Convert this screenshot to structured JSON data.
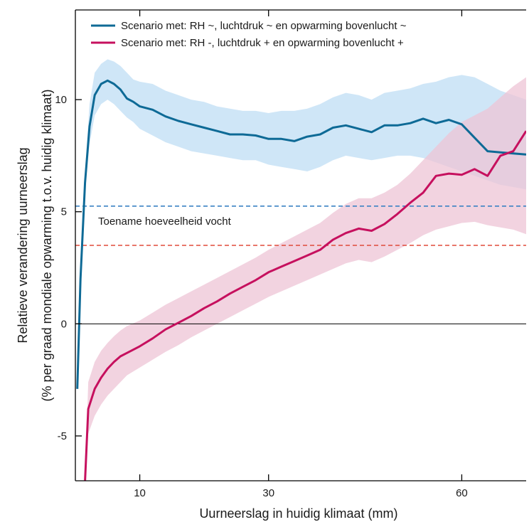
{
  "chart_data": {
    "type": "line",
    "xlabel": "Uurneerslag in huidig klimaat (mm)",
    "ylabel_line1": "Relatieve verandering uurneerslag",
    "ylabel_line2": "(% per graad mondiale opwarming t.o.v. huidig klimaat)",
    "xlim": [
      0,
      70
    ],
    "ylim": [
      -7,
      14
    ],
    "x_ticks": [
      {
        "value": 10,
        "label": "10"
      },
      {
        "value": 30,
        "label": "30"
      },
      {
        "value": 60,
        "label": "60"
      }
    ],
    "y_ticks": [
      {
        "value": -5,
        "label": "-5"
      },
      {
        "value": 0,
        "label": "0"
      },
      {
        "value": 5,
        "label": "5"
      },
      {
        "value": 10,
        "label": "10"
      }
    ],
    "legend_position": "top-left",
    "annotation": "Toename hoeveelheid vocht",
    "reference_lines": [
      {
        "y": 5.25,
        "color": "#3b82c4",
        "style": "dashed"
      },
      {
        "y": 3.5,
        "color": "#e04a3a",
        "style": "dashed"
      },
      {
        "y": 0,
        "color": "#000000",
        "style": "solid"
      }
    ],
    "series": [
      {
        "name": "Scenario met: RH ~, luchtdruk ~ en opwarming bovenlucht ~",
        "color": "#0e6a96",
        "band_color": "#cfe6f7",
        "x": [
          0.3,
          0.8,
          1.5,
          2.2,
          3,
          4,
          5,
          6,
          7,
          8,
          9,
          10,
          12,
          14,
          16,
          18,
          20,
          22,
          24,
          26,
          28,
          30,
          32,
          34,
          36,
          38,
          40,
          42,
          44,
          46,
          48,
          50,
          52,
          54,
          56,
          58,
          60,
          62,
          64,
          66,
          68,
          70
        ],
        "y": [
          -2.9,
          2.0,
          6.3,
          8.8,
          10.2,
          10.7,
          10.85,
          10.7,
          10.45,
          10.05,
          9.9,
          9.7,
          9.55,
          9.25,
          9.05,
          8.9,
          8.75,
          8.6,
          8.45,
          8.45,
          8.4,
          8.25,
          8.25,
          8.15,
          8.35,
          8.45,
          8.75,
          8.85,
          8.7,
          8.55,
          8.85,
          8.85,
          8.95,
          9.15,
          8.95,
          9.1,
          8.9,
          8.3,
          7.7,
          7.65,
          7.6,
          7.55
        ],
        "lower": [
          -2.9,
          1.8,
          6.0,
          8.0,
          9.3,
          9.8,
          10.0,
          9.8,
          9.5,
          9.2,
          9.0,
          8.7,
          8.4,
          8.1,
          7.9,
          7.7,
          7.6,
          7.5,
          7.4,
          7.3,
          7.3,
          7.1,
          7.0,
          6.9,
          6.8,
          7.0,
          7.3,
          7.5,
          7.4,
          7.3,
          7.4,
          7.5,
          7.5,
          7.4,
          7.2,
          7.0,
          6.8,
          6.6,
          6.4,
          6.2,
          6.1,
          6.0
        ],
        "upper": [
          -2.9,
          2.2,
          6.8,
          9.8,
          11.2,
          11.6,
          11.8,
          11.7,
          11.5,
          11.2,
          10.9,
          10.8,
          10.7,
          10.4,
          10.2,
          10.0,
          9.9,
          9.7,
          9.6,
          9.5,
          9.5,
          9.4,
          9.5,
          9.5,
          9.6,
          9.8,
          10.1,
          10.3,
          10.2,
          10.0,
          10.3,
          10.4,
          10.5,
          10.7,
          10.8,
          11.0,
          11.1,
          11.0,
          10.7,
          10.4,
          10.2,
          10.0
        ]
      },
      {
        "name": "Scenario met: RH -, luchtdruk + en opwarming bovenlucht +",
        "color": "#c6105e",
        "band_color": "#edc4d6",
        "x": [
          1.5,
          2,
          3,
          4,
          5,
          6,
          7,
          8,
          10,
          12,
          14,
          16,
          18,
          20,
          22,
          24,
          26,
          28,
          30,
          32,
          34,
          36,
          38,
          40,
          42,
          44,
          46,
          48,
          50,
          52,
          54,
          56,
          58,
          60,
          62,
          64,
          66,
          68,
          70
        ],
        "y": [
          -7.0,
          -3.8,
          -2.9,
          -2.4,
          -2.0,
          -1.7,
          -1.45,
          -1.3,
          -1.0,
          -0.65,
          -0.25,
          0.05,
          0.35,
          0.7,
          1.0,
          1.35,
          1.65,
          1.95,
          2.3,
          2.55,
          2.8,
          3.05,
          3.3,
          3.75,
          4.05,
          4.25,
          4.15,
          4.45,
          4.9,
          5.4,
          5.85,
          6.6,
          6.7,
          6.65,
          6.9,
          6.6,
          7.5,
          7.7,
          8.6
        ],
        "lower": [
          -7.0,
          -4.9,
          -4.1,
          -3.6,
          -3.2,
          -2.9,
          -2.6,
          -2.3,
          -1.95,
          -1.6,
          -1.25,
          -0.95,
          -0.6,
          -0.3,
          0.0,
          0.3,
          0.6,
          0.9,
          1.2,
          1.45,
          1.7,
          1.95,
          2.2,
          2.45,
          2.7,
          2.85,
          2.75,
          3.0,
          3.3,
          3.6,
          3.95,
          4.2,
          4.35,
          4.5,
          4.55,
          4.4,
          4.3,
          4.2,
          4.0
        ],
        "upper": [
          -7.0,
          -2.6,
          -1.7,
          -1.2,
          -0.85,
          -0.55,
          -0.3,
          -0.1,
          0.15,
          0.5,
          0.85,
          1.15,
          1.45,
          1.75,
          2.05,
          2.35,
          2.65,
          2.95,
          3.3,
          3.6,
          3.9,
          4.2,
          4.5,
          4.95,
          5.35,
          5.6,
          5.6,
          5.85,
          6.2,
          6.7,
          7.3,
          7.9,
          8.5,
          9.0,
          9.3,
          9.6,
          10.1,
          10.6,
          11.0
        ]
      }
    ]
  }
}
